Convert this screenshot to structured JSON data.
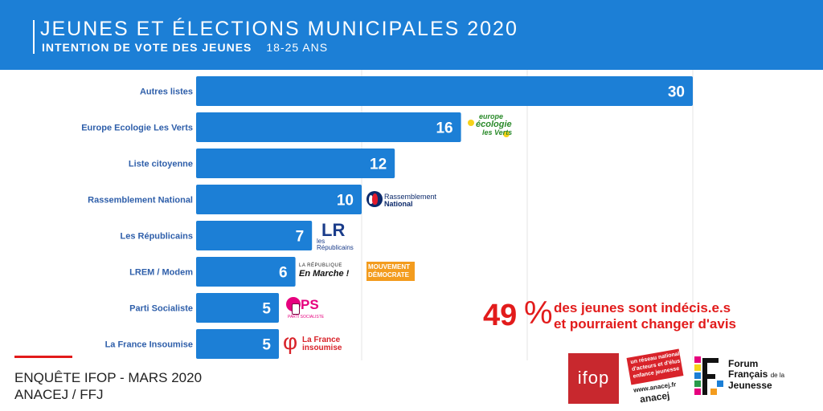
{
  "header": {
    "title": "JEUNES ET ÉLECTIONS MUNICIPALES 2020",
    "subtitle": "INTENTION DE VOTE DES JEUNES",
    "age_range": "18-25 ANS"
  },
  "colors": {
    "header_bg": "#1c7fd6",
    "bar": "#1c7fd6",
    "category_label": "#2f5faa",
    "accent_red": "#e21b1b"
  },
  "chart_data": {
    "type": "bar",
    "orientation": "horizontal",
    "title": "INTENTION DE VOTE DES JEUNES",
    "xlabel": "",
    "ylabel": "",
    "xlim": [
      0,
      30
    ],
    "grid": true,
    "categories": [
      "Autres listes",
      "Europe Ecologie Les Verts",
      "Liste citoyenne",
      "Rassemblement National",
      "Les Républicains",
      "LREM / Modem",
      "Parti Socialiste",
      "La France Insoumise"
    ],
    "values": [
      30,
      16,
      12,
      10,
      7,
      6,
      5,
      5
    ]
  },
  "logos": {
    "eelv": {
      "line1": "europe",
      "line2": "écologie",
      "line3": "les Verts"
    },
    "rn": {
      "line1": "Rassemblement",
      "line2": "National"
    },
    "lr": {
      "mark": "LR",
      "line1": "les",
      "line2": "Républicains"
    },
    "em": {
      "line1": "LA RÉPUBLIQUE",
      "line2": "En Marche !"
    },
    "modem": {
      "line1": "MOUVEMENT",
      "line2": "DÉMOCRATE"
    },
    "ps": {
      "line1": "PS",
      "line2": "PARTI SOCIALISTE"
    },
    "lfi": {
      "line1": "La France",
      "line2": "insoumise"
    }
  },
  "stat": {
    "value": "49",
    "unit": "%",
    "line1": "des jeunes sont indécis.e.s",
    "line2": "et pourraient changer d'avis"
  },
  "source": {
    "line1": "ENQUÊTE IFOP - MARS 2020",
    "line2": "ANACEJ / FFJ"
  },
  "footer_logos": {
    "ifop": "ifop",
    "anacej": {
      "line1": "un réseau national",
      "line2": "d'acteurs et d'élus",
      "line3": "enfance jeunesse",
      "url": "www.anacej.fr",
      "name": "anacej"
    },
    "ffj": {
      "line1": "Forum",
      "line2": "Français",
      "line2_small": "de la",
      "line3": "Jeunesse"
    }
  }
}
